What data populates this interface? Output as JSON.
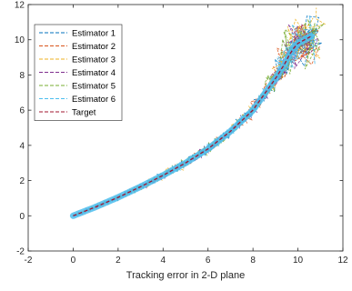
{
  "chart_data": {
    "type": "line",
    "title": "",
    "xlabel": "Tracking error in 2-D plane",
    "ylabel": "",
    "xlim": [
      -2,
      12
    ],
    "ylim": [
      -2,
      12
    ],
    "xticks": [
      "-2",
      "0",
      "2",
      "4",
      "6",
      "8",
      "10",
      "12"
    ],
    "yticks": [
      "-2",
      "0",
      "2",
      "4",
      "6",
      "8",
      "10",
      "12"
    ],
    "grid": false,
    "legend_position": "top-left",
    "series": [
      {
        "name": "Estimator 1",
        "color": "#0072BD",
        "style": "dashed"
      },
      {
        "name": "Estimator 2",
        "color": "#D95319",
        "style": "dashed"
      },
      {
        "name": "Estimator 3",
        "color": "#EDB120",
        "style": "dashed"
      },
      {
        "name": "Estimator 4",
        "color": "#7E2F8E",
        "style": "dashed"
      },
      {
        "name": "Estimator 5",
        "color": "#77AC30",
        "style": "dashed"
      },
      {
        "name": "Estimator 6",
        "color": "#4DBEEE",
        "style": "dashed"
      },
      {
        "name": "Target",
        "color": "#A2142F",
        "style": "dashed",
        "x": [
          0,
          1,
          2,
          3,
          4,
          5,
          6,
          7,
          8,
          8.5,
          9,
          9.4,
          9.6,
          9.8,
          10.0,
          10.3,
          10.6
        ],
        "y": [
          0,
          0.5,
          1.05,
          1.65,
          2.3,
          3.0,
          3.8,
          4.8,
          6.0,
          6.9,
          7.8,
          8.6,
          9.1,
          9.5,
          9.8,
          10.0,
          10.2
        ]
      }
    ]
  }
}
